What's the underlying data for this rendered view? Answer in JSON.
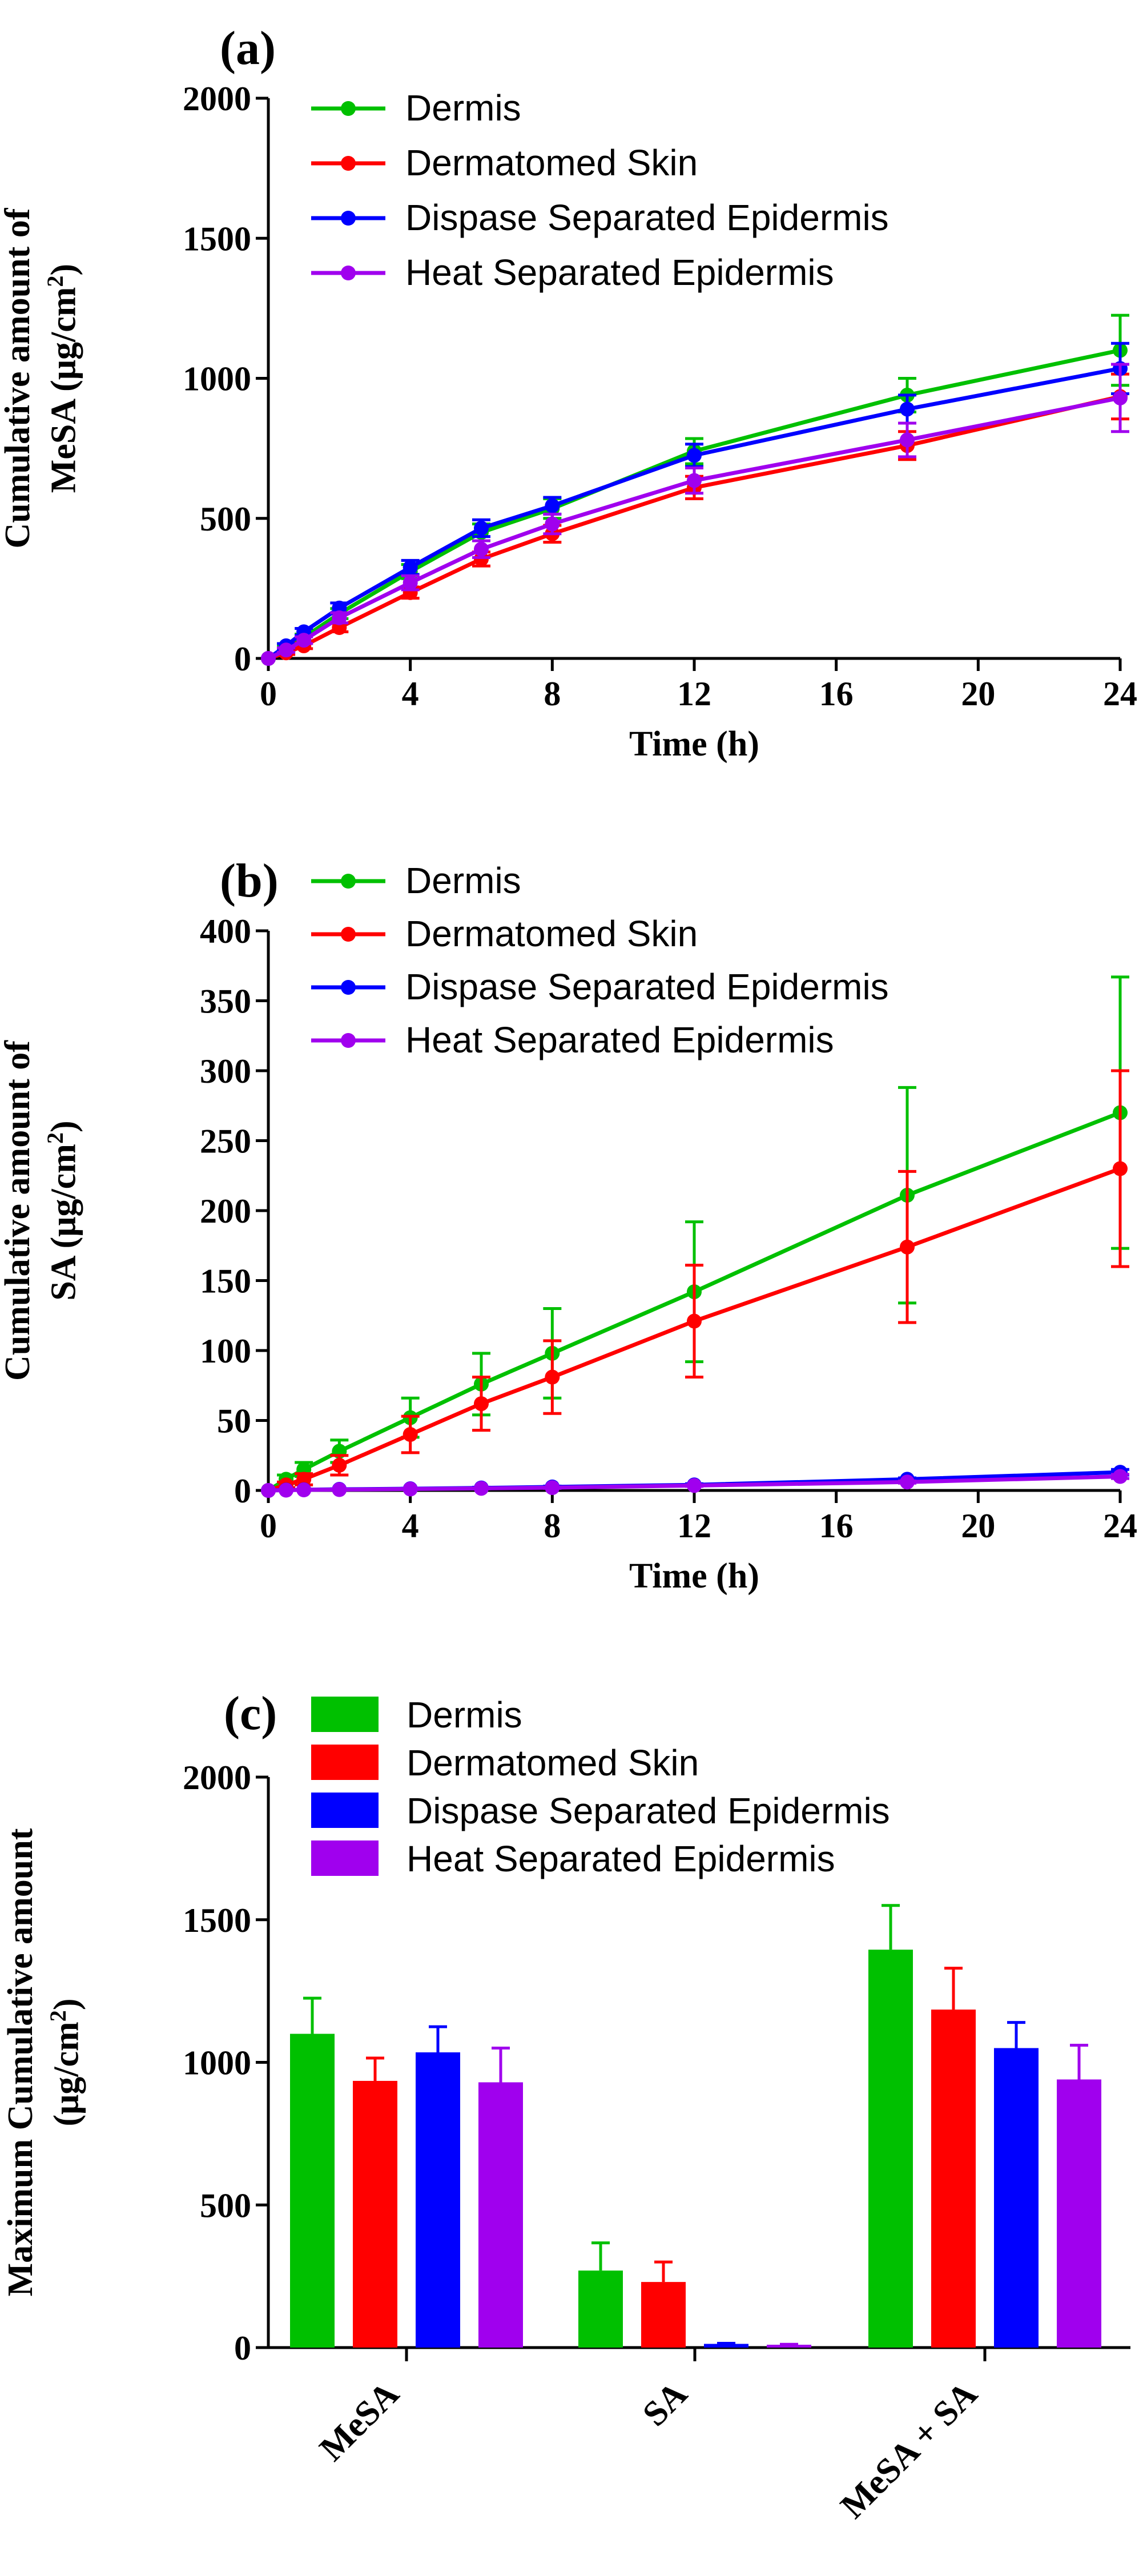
{
  "chart_data": [
    {
      "type": "line",
      "panel_label": "(a)",
      "title": "",
      "xlabel": "Time (h)",
      "ylabel_line1": "Cumulative amount of",
      "ylabel_line2_prefix": "MeSA (μg/cm",
      "ylabel_line2_sup": "2",
      "ylabel_line2_suffix": ")",
      "xlim": [
        0,
        24
      ],
      "ylim": [
        0,
        2000
      ],
      "xticks": [
        0,
        4,
        8,
        12,
        16,
        20,
        24
      ],
      "xtick_labels": [
        "0",
        "4",
        "8",
        "12",
        "16",
        "20",
        "24"
      ],
      "yticks": [
        0,
        500,
        1000,
        1500,
        2000
      ],
      "ytick_labels": [
        "0",
        "500",
        "1000",
        "1500",
        "2000"
      ],
      "legend_position": "top-left",
      "series": [
        {
          "name": "Dermis",
          "color": "#00c000",
          "x": [
            0,
            0.5,
            1,
            2,
            4,
            6,
            8,
            12,
            18,
            24
          ],
          "values": [
            0,
            35,
            75,
            160,
            310,
            450,
            535,
            740,
            940,
            1100
          ],
          "err": [
            0,
            8,
            12,
            18,
            25,
            30,
            35,
            45,
            60,
            125
          ]
        },
        {
          "name": "Dermatomed Skin",
          "color": "#ff0000",
          "x": [
            0,
            0.5,
            1,
            2,
            4,
            6,
            8,
            12,
            18,
            24
          ],
          "values": [
            0,
            20,
            45,
            110,
            235,
            355,
            445,
            610,
            760,
            935
          ],
          "err": [
            0,
            6,
            10,
            15,
            20,
            25,
            30,
            40,
            50,
            80
          ]
        },
        {
          "name": "Dispase Separated Epidermis",
          "color": "#0000ff",
          "x": [
            0,
            0.5,
            1,
            2,
            4,
            6,
            8,
            12,
            18,
            24
          ],
          "values": [
            0,
            45,
            95,
            180,
            325,
            465,
            545,
            725,
            890,
            1035
          ],
          "err": [
            0,
            8,
            12,
            18,
            25,
            30,
            30,
            40,
            50,
            90
          ]
        },
        {
          "name": "Heat Separated Epidermis",
          "color": "#a000ee",
          "x": [
            0,
            0.5,
            1,
            2,
            4,
            6,
            8,
            12,
            18,
            24
          ],
          "values": [
            0,
            30,
            65,
            145,
            270,
            390,
            480,
            635,
            780,
            930
          ],
          "err": [
            0,
            8,
            12,
            18,
            25,
            30,
            35,
            45,
            60,
            120
          ]
        }
      ]
    },
    {
      "type": "line",
      "panel_label": "(b)",
      "title": "",
      "xlabel": "Time (h)",
      "ylabel_line1": "Cumulative amount of",
      "ylabel_line2_prefix": "SA (μg/cm",
      "ylabel_line2_sup": "2",
      "ylabel_line2_suffix": ")",
      "xlim": [
        0,
        24
      ],
      "ylim": [
        0,
        400
      ],
      "xticks": [
        0,
        4,
        8,
        12,
        16,
        20,
        24
      ],
      "xtick_labels": [
        "0",
        "4",
        "8",
        "12",
        "16",
        "20",
        "24"
      ],
      "yticks": [
        0,
        50,
        100,
        150,
        200,
        250,
        300,
        350,
        400
      ],
      "ytick_labels": [
        "0",
        "50",
        "100",
        "150",
        "200",
        "250",
        "300",
        "350",
        "400"
      ],
      "legend_position": "top-left",
      "series": [
        {
          "name": "Dermis",
          "color": "#00c000",
          "x": [
            0,
            0.5,
            1,
            2,
            4,
            6,
            8,
            12,
            18,
            24
          ],
          "values": [
            0,
            8,
            15,
            28,
            52,
            76,
            98,
            142,
            211,
            270
          ],
          "err": [
            0,
            3,
            5,
            8,
            14,
            22,
            32,
            50,
            77,
            97
          ]
        },
        {
          "name": "Dermatomed Skin",
          "color": "#ff0000",
          "x": [
            0,
            0.5,
            1,
            2,
            4,
            6,
            8,
            12,
            18,
            24
          ],
          "values": [
            0,
            4,
            8,
            18,
            40,
            62,
            81,
            121,
            174,
            230
          ],
          "err": [
            0,
            2,
            4,
            7,
            13,
            19,
            26,
            40,
            54,
            70
          ]
        },
        {
          "name": "Dispase Separated Epidermis",
          "color": "#0000ff",
          "x": [
            0,
            0.5,
            1,
            2,
            4,
            6,
            8,
            12,
            18,
            24
          ],
          "values": [
            0,
            0.3,
            0.5,
            0.8,
            1.2,
            1.8,
            2.5,
            4,
            8,
            13
          ],
          "err": [
            0,
            0.2,
            0.2,
            0.3,
            0.4,
            0.5,
            0.6,
            0.8,
            1,
            2
          ]
        },
        {
          "name": "Heat Separated Epidermis",
          "color": "#a000ee",
          "x": [
            0,
            0.5,
            1,
            2,
            4,
            6,
            8,
            12,
            18,
            24
          ],
          "values": [
            0,
            0.2,
            0.4,
            0.6,
            1,
            1.5,
            2,
            3.5,
            6,
            10
          ],
          "err": [
            0,
            0.1,
            0.2,
            0.2,
            0.3,
            0.4,
            0.5,
            0.6,
            0.8,
            1.5
          ]
        }
      ]
    },
    {
      "type": "bar",
      "panel_label": "(c)",
      "title": "",
      "xlabel": "",
      "ylabel_line1": "Maximum Cumulative amount",
      "ylabel_line2_prefix": "(μg/cm",
      "ylabel_line2_sup": "2",
      "ylabel_line2_suffix": ")",
      "ylim": [
        0,
        2000
      ],
      "yticks": [
        0,
        500,
        1000,
        1500,
        2000
      ],
      "ytick_labels": [
        "0",
        "500",
        "1000",
        "1500",
        "2000"
      ],
      "categories": [
        "MeSA",
        "SA",
        "MeSA + SA"
      ],
      "legend_position": "top-left",
      "series": [
        {
          "name": "Dermis",
          "color": "#00c000",
          "values": [
            1100,
            270,
            1395
          ],
          "err": [
            125,
            97,
            155
          ]
        },
        {
          "name": "Dermatomed Skin",
          "color": "#ff0000",
          "values": [
            935,
            230,
            1185
          ],
          "err": [
            80,
            70,
            145
          ]
        },
        {
          "name": "Dispase Separated Epidermis",
          "color": "#0000ff",
          "values": [
            1035,
            13,
            1050
          ],
          "err": [
            90,
            2,
            90
          ]
        },
        {
          "name": "Heat Separated Epidermis",
          "color": "#a000ee",
          "values": [
            930,
            10,
            940
          ],
          "err": [
            120,
            1.5,
            120
          ]
        }
      ]
    }
  ]
}
